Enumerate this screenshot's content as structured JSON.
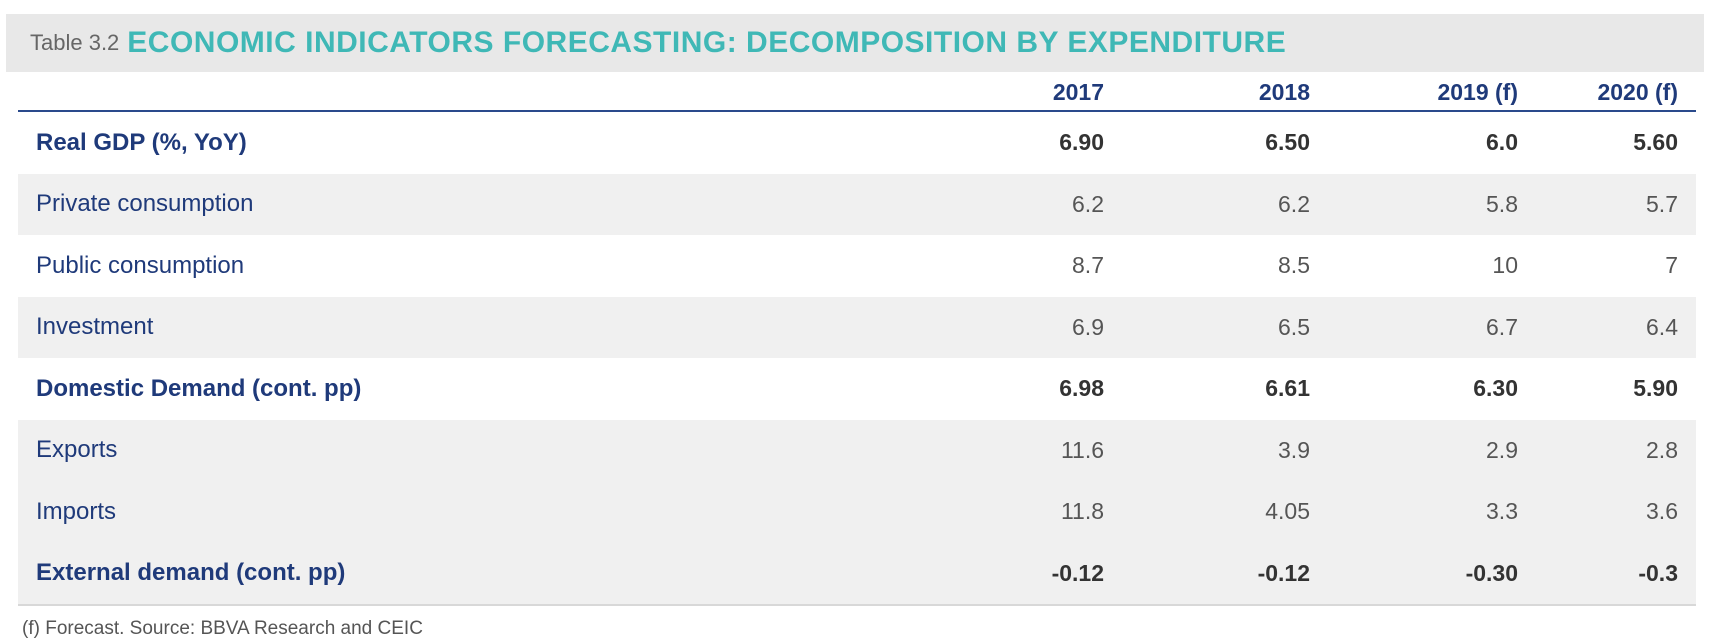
{
  "title": {
    "prefix": "Table 3.2",
    "main": "ECONOMIC INDICATORS FORECASTING: DECOMPOSITION BY EXPENDITURE"
  },
  "table": {
    "columns": [
      "2017",
      "2018",
      "2019 (f)",
      "2020 (f)"
    ],
    "rows": [
      {
        "label": "Real GDP (%, YoY)",
        "values": [
          "6.90",
          "6.50",
          "6.0",
          "5.60"
        ],
        "bold": true
      },
      {
        "label": "Private consumption",
        "values": [
          "6.2",
          "6.2",
          "5.8",
          "5.7"
        ],
        "bold": false
      },
      {
        "label": "Public consumption",
        "values": [
          "8.7",
          "8.5",
          "10",
          "7"
        ],
        "bold": false
      },
      {
        "label": "Investment",
        "values": [
          "6.9",
          "6.5",
          "6.7",
          "6.4"
        ],
        "bold": false
      },
      {
        "label": "Domestic Demand (cont. pp)",
        "values": [
          "6.98",
          "6.61",
          "6.30",
          "5.90"
        ],
        "bold": true
      },
      {
        "label": "Exports",
        "values": [
          "11.6",
          "3.9",
          "2.9",
          "2.8"
        ],
        "bold": false
      },
      {
        "label": "Imports",
        "values": [
          "11.8",
          "4.05",
          "3.3",
          "3.6"
        ],
        "bold": false
      },
      {
        "label": "External demand (cont. pp)",
        "values": [
          "-0.12",
          "-0.12",
          "-0.30",
          "-0.3"
        ],
        "bold": true
      }
    ]
  },
  "footnote": "(f) Forecast. Source: BBVA Research and CEIC",
  "colors": {
    "title_accent": "#3fb8b6",
    "label_text": "#1f3a7a",
    "header_rule": "#2a4a8c",
    "row_shade": "#f0f0f0"
  }
}
